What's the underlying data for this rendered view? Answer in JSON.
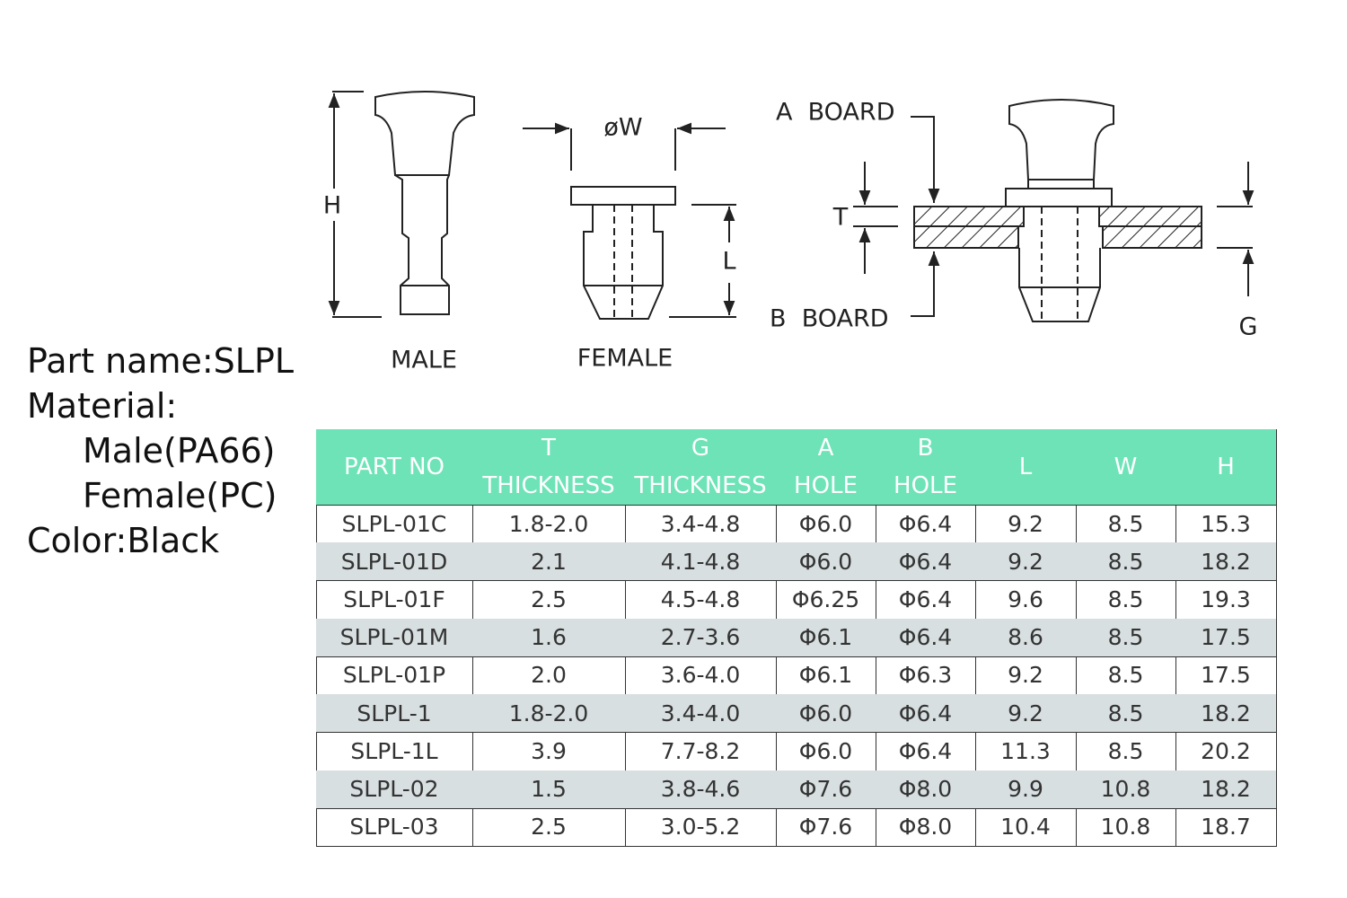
{
  "drawing": {
    "male": {
      "label": "MALE",
      "h": "H"
    },
    "female": {
      "label": "FEMALE",
      "w": "øW",
      "l": "L"
    },
    "assembly": {
      "a_board": "A  BOARD",
      "b_board": "B  BOARD",
      "t": "T",
      "g": "G"
    }
  },
  "info": {
    "part_name": "Part name:SLPL",
    "material": "Material:",
    "male": "Male(PA66)",
    "female": "Female(PC)",
    "color": "Color:Black"
  },
  "table": {
    "header": [
      [
        "PART NO"
      ],
      [
        "T",
        "THICKNESS"
      ],
      [
        "G",
        "THICKNESS"
      ],
      [
        "A",
        "HOLE"
      ],
      [
        "B",
        "HOLE"
      ],
      [
        "L"
      ],
      [
        "W"
      ],
      [
        "H"
      ]
    ],
    "rows": [
      [
        "SLPL-01C",
        "1.8-2.0",
        "3.4-4.8",
        "Φ6.0",
        "Φ6.4",
        "9.2",
        "8.5",
        "15.3"
      ],
      [
        "SLPL-01D",
        "2.1",
        "4.1-4.8",
        "Φ6.0",
        "Φ6.4",
        "9.2",
        "8.5",
        "18.2"
      ],
      [
        "SLPL-01F",
        "2.5",
        "4.5-4.8",
        "Φ6.25",
        "Φ6.4",
        "9.6",
        "8.5",
        "19.3"
      ],
      [
        "SLPL-01M",
        "1.6",
        "2.7-3.6",
        "Φ6.1",
        "Φ6.4",
        "8.6",
        "8.5",
        "17.5"
      ],
      [
        "SLPL-01P",
        "2.0",
        "3.6-4.0",
        "Φ6.1",
        "Φ6.3",
        "9.2",
        "8.5",
        "17.5"
      ],
      [
        "SLPL-1",
        "1.8-2.0",
        "3.4-4.0",
        "Φ6.0",
        "Φ6.4",
        "9.2",
        "8.5",
        "18.2"
      ],
      [
        "SLPL-1L",
        "3.9",
        "7.7-8.2",
        "Φ6.0",
        "Φ6.4",
        "11.3",
        "8.5",
        "20.2"
      ],
      [
        "SLPL-02",
        "1.5",
        "3.8-4.6",
        "Φ7.6",
        "Φ8.0",
        "9.9",
        "10.8",
        "18.2"
      ],
      [
        "SLPL-03",
        "2.5",
        "3.0-5.2",
        "Φ7.6",
        "Φ8.0",
        "10.4",
        "10.8",
        "18.7"
      ]
    ]
  }
}
